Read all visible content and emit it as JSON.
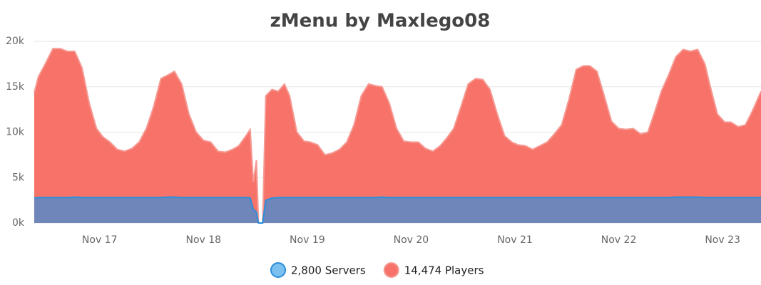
{
  "chart_data": {
    "type": "area",
    "title": "zMenu by Maxlego08",
    "x": [
      16.37,
      16.41,
      16.48,
      16.55,
      16.62,
      16.69,
      16.76,
      16.83,
      16.9,
      16.97,
      17.03,
      17.1,
      17.17,
      17.24,
      17.31,
      17.38,
      17.45,
      17.52,
      17.59,
      17.66,
      17.72,
      17.79,
      17.86,
      17.93,
      18.0,
      18.07,
      18.14,
      18.21,
      18.28,
      18.34,
      18.41,
      18.45,
      18.48,
      18.51,
      18.53,
      18.57,
      18.6,
      18.66,
      18.72,
      18.78,
      18.83,
      18.9,
      18.97,
      19.03,
      19.1,
      19.17,
      19.24,
      19.31,
      19.38,
      19.45,
      19.52,
      19.59,
      19.66,
      19.72,
      19.79,
      19.86,
      19.93,
      20.0,
      20.07,
      20.14,
      20.21,
      20.28,
      20.34,
      20.41,
      20.48,
      20.55,
      20.62,
      20.69,
      20.76,
      20.83,
      20.9,
      20.97,
      21.03,
      21.1,
      21.17,
      21.24,
      21.31,
      21.38,
      21.45,
      21.52,
      21.59,
      21.66,
      21.72,
      21.79,
      21.86,
      21.93,
      22.0,
      22.07,
      22.14,
      22.21,
      22.28,
      22.34,
      22.41,
      22.48,
      22.55,
      22.62,
      22.69,
      22.76,
      22.83,
      22.88,
      22.95,
      23.02,
      23.08,
      23.15,
      23.22,
      23.29,
      23.37
    ],
    "series": [
      {
        "name": "14,474 Players",
        "color": "#f7736a",
        "line_color": "#f59a93",
        "values": [
          14350,
          16100,
          17600,
          19200,
          19200,
          18900,
          18900,
          17100,
          13200,
          10400,
          9500,
          8900,
          8100,
          7900,
          8200,
          8900,
          10400,
          12800,
          15900,
          16300,
          16700,
          15300,
          12000,
          10000,
          9100,
          8900,
          7900,
          7800,
          8100,
          8500,
          9600,
          10300,
          4500,
          6900,
          0,
          0,
          14000,
          14700,
          14500,
          15300,
          14000,
          10000,
          9000,
          8900,
          8600,
          7500,
          7700,
          8100,
          8900,
          10800,
          14000,
          15300,
          15100,
          15000,
          13200,
          10400,
          9000,
          8900,
          8900,
          8200,
          7900,
          8500,
          9300,
          10400,
          12800,
          15300,
          15900,
          15800,
          14700,
          12000,
          9600,
          8900,
          8600,
          8500,
          8100,
          8500,
          8900,
          9800,
          10800,
          13600,
          16900,
          17300,
          17300,
          16700,
          14000,
          11200,
          10400,
          10300,
          10400,
          9800,
          10000,
          12000,
          14500,
          16300,
          18300,
          19100,
          18900,
          19100,
          17500,
          15100,
          12000,
          11100,
          11100,
          10600,
          10800,
          12400,
          14500
        ]
      },
      {
        "name": "2,800 Servers",
        "color": "#6f86bb",
        "line_color": "#2a8fdb",
        "legend_fill": "#7cc0f0",
        "values": [
          2750,
          2800,
          2800,
          2800,
          2800,
          2800,
          2850,
          2800,
          2800,
          2800,
          2800,
          2800,
          2800,
          2800,
          2800,
          2800,
          2800,
          2800,
          2800,
          2850,
          2850,
          2800,
          2800,
          2800,
          2800,
          2800,
          2800,
          2800,
          2800,
          2800,
          2800,
          2750,
          1500,
          1200,
          0,
          0,
          2500,
          2750,
          2800,
          2800,
          2800,
          2800,
          2800,
          2800,
          2800,
          2800,
          2800,
          2800,
          2800,
          2800,
          2800,
          2800,
          2800,
          2850,
          2800,
          2800,
          2800,
          2800,
          2800,
          2800,
          2800,
          2800,
          2800,
          2800,
          2800,
          2800,
          2800,
          2800,
          2800,
          2800,
          2800,
          2800,
          2800,
          2800,
          2800,
          2800,
          2800,
          2800,
          2800,
          2800,
          2800,
          2800,
          2800,
          2800,
          2800,
          2800,
          2800,
          2800,
          2800,
          2800,
          2800,
          2800,
          2800,
          2800,
          2850,
          2850,
          2850,
          2850,
          2800,
          2800,
          2800,
          2800,
          2800,
          2800,
          2800,
          2800,
          2800
        ]
      }
    ],
    "xlim": [
      16.37,
      23.37
    ],
    "xticks": [
      {
        "value": 17,
        "label": "Nov 17"
      },
      {
        "value": 18,
        "label": "Nov 18"
      },
      {
        "value": 19,
        "label": "Nov 19"
      },
      {
        "value": 20,
        "label": "Nov 20"
      },
      {
        "value": 21,
        "label": "Nov 21"
      },
      {
        "value": 22,
        "label": "Nov 22"
      },
      {
        "value": 23,
        "label": "Nov 23"
      }
    ],
    "ylim": [
      0,
      20000
    ],
    "yticks": [
      {
        "value": 0,
        "label": "0k"
      },
      {
        "value": 5000,
        "label": "5k"
      },
      {
        "value": 10000,
        "label": "10k"
      },
      {
        "value": 15000,
        "label": "15k"
      },
      {
        "value": 20000,
        "label": "20k"
      }
    ],
    "grid": true
  }
}
